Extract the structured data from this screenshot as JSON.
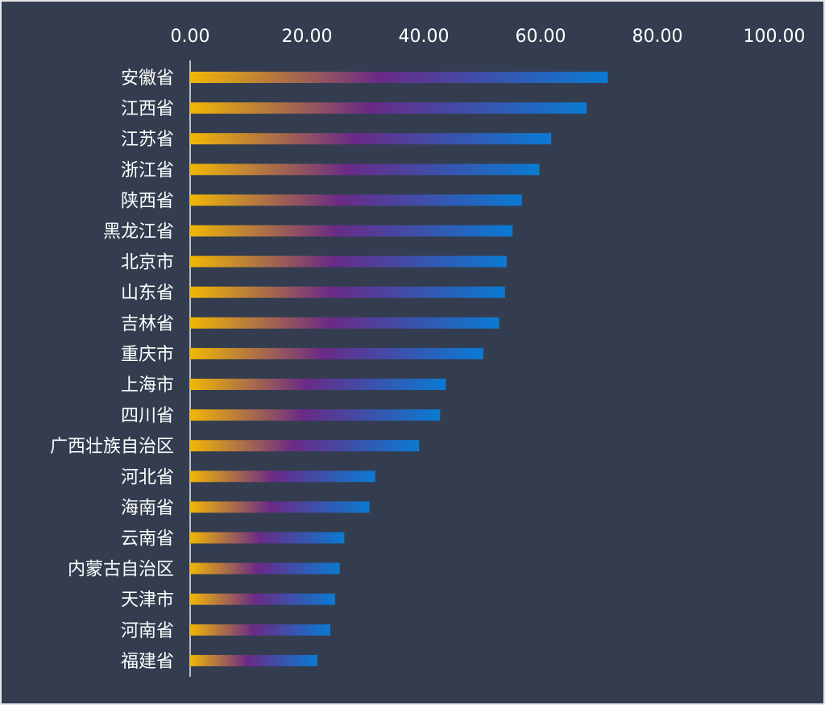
{
  "chart_data": {
    "type": "bar",
    "orientation": "horizontal",
    "categories": [
      "安徽省",
      "江西省",
      "江苏省",
      "浙江省",
      "陕西省",
      "黑龙江省",
      "北京市",
      "山东省",
      "吉林省",
      "重庆市",
      "上海市",
      "四川省",
      "广西壮族自治区",
      "河北省",
      "海南省",
      "云南省",
      "内蒙古自治区",
      "天津市",
      "河南省",
      "福建省"
    ],
    "values": [
      71.5,
      67.9,
      61.8,
      59.8,
      56.8,
      55.2,
      54.2,
      53.9,
      52.9,
      50.2,
      43.8,
      42.8,
      39.2,
      31.7,
      30.7,
      26.4,
      25.6,
      24.8,
      24.0,
      21.8
    ],
    "xlim": [
      0,
      100
    ],
    "xticks": [
      "0.00",
      "20.00",
      "40.00",
      "60.00",
      "80.00",
      "100.00"
    ],
    "x_axis_position": "top",
    "grid": false,
    "title": "",
    "xlabel": "",
    "ylabel": "",
    "colors": {
      "background": "#333d4f",
      "gradient_start": "#f2b705",
      "gradient_mid": "#6a2a86",
      "gradient_end": "#0a7bd3",
      "text": "#ffffff",
      "axis_line": "#e8e8e8"
    }
  }
}
